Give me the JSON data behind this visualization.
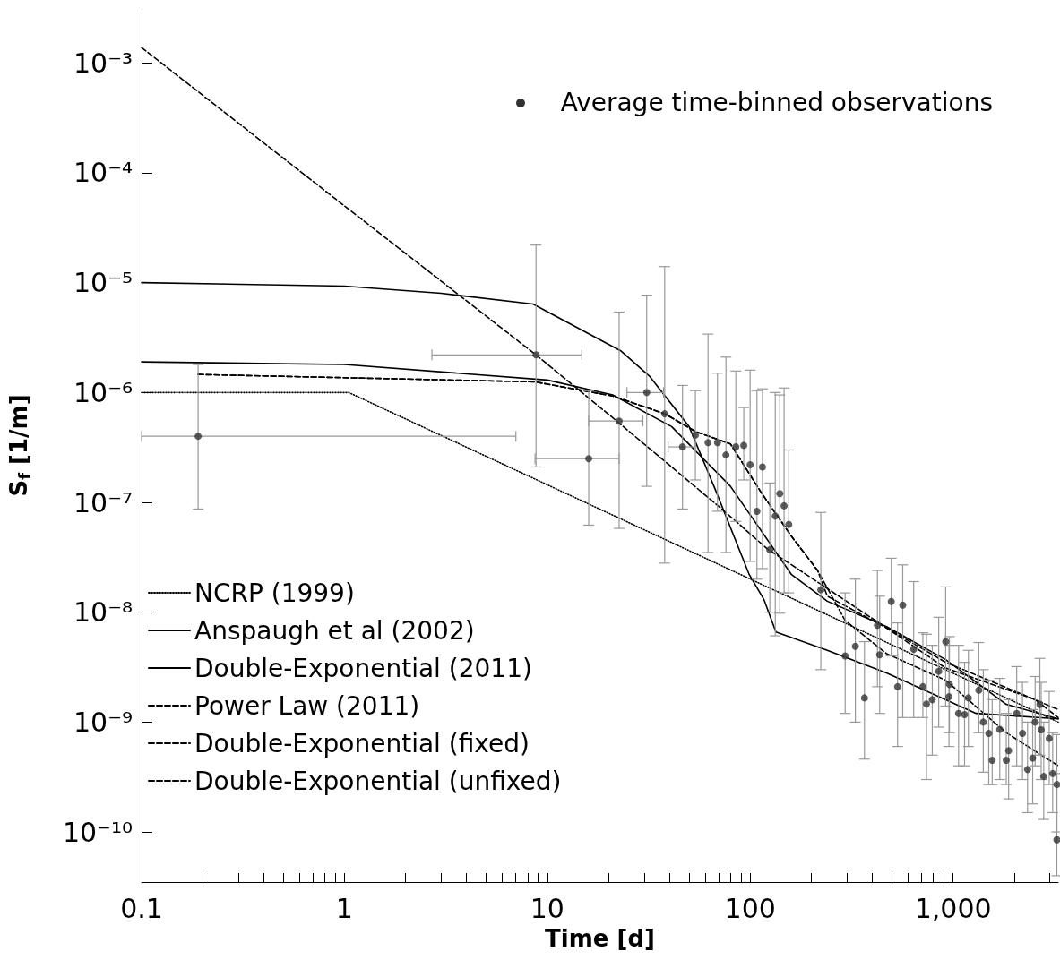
{
  "chart_data": {
    "type": "line",
    "annotations": [
      "Average time-binned observations"
    ],
    "xlabel": "Time [d]",
    "ylabel": "S$_{f}$ [1/m]",
    "log": "xy",
    "grid": false,
    "legend": "bottom left",
    "xlim": [
      0.1,
      3300
    ],
    "ylim": [
      3.5e-11,
      0.0031
    ],
    "xticks": [
      0.1,
      {
        "value": 0.2,
        "label": null
      },
      {
        "value": 0.3,
        "label": null
      },
      {
        "value": 0.4,
        "label": null
      },
      {
        "value": 0.5,
        "label": null
      },
      {
        "value": 0.6,
        "label": null
      },
      {
        "value": 0.7,
        "label": null
      },
      {
        "value": 0.8,
        "label": null
      },
      {
        "value": 0.9,
        "label": null
      },
      1,
      {
        "value": 2,
        "label": null
      },
      {
        "value": 3,
        "label": null
      },
      {
        "value": 4,
        "label": null
      },
      {
        "value": 5,
        "label": null
      },
      {
        "value": 6,
        "label": null
      },
      {
        "value": 7,
        "label": null
      },
      {
        "value": 8,
        "label": null
      },
      {
        "value": 9,
        "label": null
      },
      10,
      {
        "value": 20,
        "label": null
      },
      {
        "value": 30,
        "label": null
      },
      {
        "value": 40,
        "label": null
      },
      {
        "value": 50,
        "label": null
      },
      {
        "value": 60,
        "label": null
      },
      {
        "value": 70,
        "label": null
      },
      {
        "value": 80,
        "label": null
      },
      {
        "value": 90,
        "label": null
      },
      100,
      {
        "value": 200,
        "label": null
      },
      {
        "value": 300,
        "label": null
      },
      {
        "value": 400,
        "label": null
      },
      {
        "value": 500,
        "label": null
      },
      {
        "value": 600,
        "label": null
      },
      {
        "value": 700,
        "label": null
      },
      {
        "value": 800,
        "label": null
      },
      {
        "value": 900,
        "label": null
      },
      {
        "value": 1000,
        "label": "1,000"
      },
      {
        "value": 2000,
        "label": null
      },
      {
        "value": 3000,
        "label": null
      }
    ],
    "yticks": [
      {
        "value": 1e-10,
        "label": "10⁻¹⁰"
      },
      {
        "value": 1e-09,
        "label": "10⁻⁹"
      },
      {
        "value": 1e-08,
        "label": "10⁻⁸"
      },
      {
        "value": 1e-07,
        "label": "10⁻⁷"
      },
      {
        "value": 1e-06,
        "label": "10⁻⁶"
      },
      {
        "value": 1e-05,
        "label": "10⁻⁵"
      },
      {
        "value": 0.0001,
        "label": "10⁻⁴"
      },
      {
        "value": 0.001,
        "label": "10⁻³"
      }
    ],
    "series": [
      {
        "name": "NCRP (1999)",
        "color": "#000000",
        "line_style": "dotted",
        "x": [
          0.1,
          1.05,
          3300
        ],
        "values": [
          1e-06,
          1e-06,
          1e-09
        ]
      },
      {
        "name": "Anspaugh et al (2002)",
        "color": "#000000",
        "line_style": "solid",
        "x": [
          0.1,
          1,
          3,
          8.5,
          23,
          32,
          50,
          68,
          99,
          117,
          134,
          240,
          470,
          1300,
          3300
        ],
        "values": [
          1e-05,
          9.3e-06,
          8e-06,
          6.4e-06,
          2.4e-06,
          1.4e-06,
          4.9e-07,
          1.25e-07,
          2.2e-08,
          1.3e-08,
          6.6e-09,
          4.5e-09,
          2.8e-09,
          1.2e-09,
          1.07e-09
        ]
      },
      {
        "name": "Double-Exponential (2011)",
        "color": "#000000",
        "line_style": "solid",
        "x": [
          0.1,
          1,
          10,
          21,
          41,
          80,
          160,
          240,
          470,
          920,
          1830,
          3300
        ],
        "values": [
          1.9e-06,
          1.8e-06,
          1.3e-06,
          9.5e-07,
          4.9e-07,
          1.4e-07,
          2.2e-08,
          1.26e-08,
          7.4e-09,
          3.7e-09,
          1.45e-09,
          1.07e-09
        ]
      },
      {
        "name": "Power Law (2011)",
        "color": "#000000",
        "line_style": "dashed",
        "x": [
          0.1,
          1,
          8.8,
          21,
          71,
          121,
          223,
          470,
          920,
          2540,
          3300
        ],
        "values": [
          0.00138,
          5e-05,
          2.2e-06,
          5.9e-07,
          9e-08,
          3.8e-08,
          1.8e-08,
          7.2e-09,
          3.1e-09,
          1.6e-09,
          1.1e-09
        ]
      },
      {
        "name": "Double-Exponential (fixed)",
        "color": "#000000",
        "line_style": "dashed",
        "x": [
          0.19,
          8.7,
          21,
          38,
          54,
          80,
          113,
          160,
          215,
          240,
          470,
          920,
          2540,
          3300
        ],
        "values": [
          1.46e-06,
          1.25e-06,
          9.3e-07,
          6.4e-07,
          4.4e-07,
          3.4e-07,
          1.24e-07,
          4.9e-08,
          2.4e-08,
          1.4e-08,
          7.2e-09,
          3.5e-09,
          1.6e-09,
          1.3e-09
        ]
      },
      {
        "name": "Double-Exponential (unfixed)",
        "color": "#000000",
        "line_style": "dashed",
        "x": [
          0.19,
          8.7,
          21,
          38,
          54,
          80,
          113,
          160,
          215,
          294,
          470,
          920,
          1830,
          3300
        ],
        "values": [
          1.46e-06,
          1.25e-06,
          9.3e-07,
          6.4e-07,
          4.4e-07,
          3.4e-07,
          1.24e-07,
          4.9e-08,
          2.4e-08,
          8.4e-09,
          4.2e-09,
          2.4e-09,
          8e-10,
          4e-10
        ]
      },
      {
        "type": "scatter",
        "marker": "circle",
        "color": "#333333",
        "x": [
          0.19,
          8.8,
          16,
          22.6,
          30.9,
          37.9,
          46.4,
          53.7,
          62,
          69,
          76,
          85,
          93,
          100,
          108,
          115,
          125,
          133,
          140,
          147,
          155,
          223,
          294,
          330,
          366,
          424,
          435,
          496,
          533,
          565,
          640,
          710,
          740,
          790,
          850,
          920,
          955,
          960,
          1065,
          1140,
          1190,
          1340,
          1410,
          1500,
          1560,
          1700,
          1830,
          1880,
          2060,
          2200,
          2330,
          2470,
          2540,
          2680,
          2720,
          2800,
          2980,
          3100,
          3250,
          3250
        ],
        "values": [
          4e-07,
          2.2e-06,
          2.5e-07,
          5.5e-07,
          1e-06,
          6.4e-07,
          3.2e-07,
          4.1e-07,
          3.5e-07,
          3.5e-07,
          2.7e-07,
          3.2e-07,
          3.3e-07,
          2.2e-07,
          8.3e-08,
          2.1e-07,
          3.7e-08,
          7.5e-08,
          1.2e-07,
          9.3e-08,
          6.3e-08,
          1.6e-08,
          4e-09,
          4.9e-09,
          1.66e-09,
          7.6e-09,
          4.1e-09,
          1.25e-08,
          2.1e-09,
          1.16e-08,
          4.6e-09,
          2.1e-09,
          1.46e-09,
          1.6e-09,
          2.9e-09,
          5.4e-09,
          1.7e-09,
          2.2e-09,
          1.2e-09,
          1.17e-09,
          1.66e-09,
          1.95e-09,
          1e-09,
          7.9e-10,
          4.5e-10,
          8.6e-10,
          4.5e-10,
          5.5e-10,
          1.2e-09,
          7.9e-10,
          3.7e-10,
          4.7e-10,
          1e-09,
          1.45e-09,
          8.5e-10,
          3.2e-10,
          7.1e-10,
          3.4e-10,
          2.7e-10,
          8.5e-11
        ],
        "errors": [
          [
            8.7e-08,
            1.8e-06
          ],
          [
            2.1e-07,
            2.2e-05
          ],
          [
            6.2e-08,
            1.04e-06
          ],
          [
            5.8e-08,
            5.4e-06
          ],
          [
            1.4e-07,
            7.7e-06
          ],
          [
            2.8e-08,
            1.4e-05
          ],
          [
            8.7e-08,
            1.16e-06
          ],
          [
            1.6e-07,
            1.04e-06
          ],
          [
            3.5e-08,
            3.4e-06
          ],
          [
            8.3e-08,
            1.5e-06
          ],
          [
            3.5e-08,
            2.1e-06
          ],
          [
            6.7e-08,
            1.57e-06
          ],
          [
            1.6e-07,
            7.3e-07
          ],
          [
            2.9e-08,
            1.6e-06
          ],
          [
            2e-08,
            1.04e-06
          ],
          [
            2.5e-08,
            1.08e-06
          ],
          [
            1e-08,
            1.5e-07
          ],
          [
            6.1e-09,
            1e-06
          ],
          [
            9.8e-09,
            9.5e-07
          ],
          [
            1.5e-08,
            1.1e-06
          ],
          [
            1.5e-08,
            3e-07
          ],
          [
            3e-09,
            8.1e-08
          ],
          [
            1.2e-09,
            1.5e-08
          ],
          [
            1e-09,
            2e-08
          ],
          [
            4.6e-10,
            5.4e-09
          ],
          [
            2.1e-09,
            2.4e-08
          ],
          [
            1.2e-09,
            1.4e-08
          ],
          [
            4e-09,
            3.1e-08
          ],
          [
            6e-10,
            8e-09
          ],
          [
            1.1e-09,
            2.7e-08
          ],
          [
            1.1e-09,
            1.9e-08
          ],
          [
            1.1e-09,
            6.5e-09
          ],
          [
            3e-10,
            6.3e-09
          ],
          [
            5e-10,
            5e-09
          ],
          [
            9e-10,
            9e-09
          ],
          [
            1.4e-09,
            1.7e-08
          ],
          [
            6e-10,
            5e-09
          ],
          [
            8e-10,
            6e-09
          ],
          [
            4e-10,
            5e-09
          ],
          [
            4e-10,
            3.5e-09
          ],
          [
            6e-10,
            4.5e-09
          ],
          [
            8e-10,
            5.3e-09
          ],
          [
            3.5e-10,
            3e-09
          ],
          [
            2.7e-10,
            2.4e-09
          ],
          [
            2.7e-10,
            1.6e-09
          ],
          [
            3e-10,
            2.5e-09
          ],
          [
            2.7e-10,
            1.2e-09
          ],
          [
            2e-10,
            1.6e-09
          ],
          [
            4e-10,
            3.2e-09
          ],
          [
            3e-10,
            2.3e-09
          ],
          [
            1.5e-10,
            1e-09
          ],
          [
            1.8e-10,
            1.3e-09
          ],
          [
            4e-10,
            2.6e-09
          ],
          [
            5e-10,
            3.8e-09
          ],
          [
            3e-10,
            2.3e-09
          ],
          [
            1.3e-10,
            1e-09
          ],
          [
            2.7e-10,
            1.9e-09
          ],
          [
            1.5e-10,
            8e-10
          ],
          [
            1e-10,
            7.7e-10
          ],
          [
            4e-11,
            3.4e-10
          ]
        ],
        "xerrors": [
          [
            0.1,
            7.0
          ],
          [
            2.7,
            14.8
          ],
          [
            8.7,
            22.6
          ],
          [
            16,
            29.6
          ],
          [
            24.7,
            37.4
          ],
          null,
          [
            39.4,
            53.6
          ],
          null,
          null,
          null,
          null,
          null,
          null,
          null,
          null,
          null,
          null,
          null,
          null,
          null,
          null,
          null,
          null,
          null,
          null,
          null,
          null,
          null,
          null,
          null,
          null,
          null,
          null,
          null,
          null,
          null,
          null,
          null,
          null,
          null,
          null,
          null,
          null,
          null,
          null,
          null,
          null,
          null,
          null,
          null,
          null,
          null,
          null,
          null,
          null,
          null,
          null,
          null,
          null,
          null
        ]
      }
    ]
  }
}
